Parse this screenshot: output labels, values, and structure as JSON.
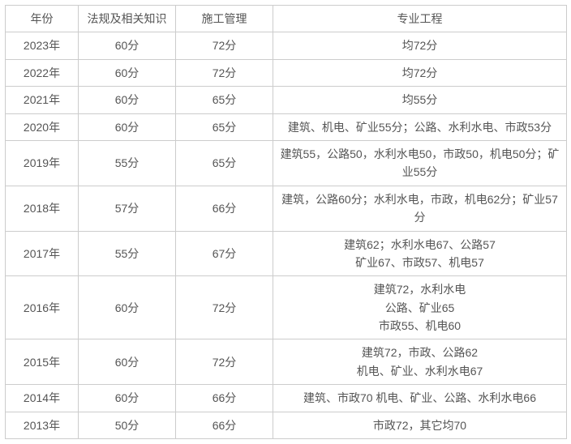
{
  "table": {
    "headers": {
      "year": "年份",
      "law": "法规及相关知识",
      "mgmt": "施工管理",
      "eng": "专业工程"
    },
    "rows": [
      {
        "year": "2023年",
        "law": "60分",
        "mgmt": "72分",
        "eng": "均72分"
      },
      {
        "year": "2022年",
        "law": "60分",
        "mgmt": "72分",
        "eng": "均72分"
      },
      {
        "year": "2021年",
        "law": "60分",
        "mgmt": "65分",
        "eng": "均55分"
      },
      {
        "year": "2020年",
        "law": "60分",
        "mgmt": "65分",
        "eng": "建筑、机电、矿业55分；公路、水利水电、市政53分"
      },
      {
        "year": "2019年",
        "law": "55分",
        "mgmt": "65分",
        "eng": "建筑55，公路50，水利水电50，市政50，机电50分；矿业55分"
      },
      {
        "year": "2018年",
        "law": "57分",
        "mgmt": "66分",
        "eng": "建筑，公路60分；水利水电，市政，机电62分；矿业57分"
      },
      {
        "year": "2017年",
        "law": "55分",
        "mgmt": "67分",
        "eng": "建筑62；水利水电67、公路57\n矿业67、市政57、机电57"
      },
      {
        "year": "2016年",
        "law": "60分",
        "mgmt": "72分",
        "eng": "建筑72，水利水电\n公路、矿业65\n市政55、机电60"
      },
      {
        "year": "2015年",
        "law": "60分",
        "mgmt": "72分",
        "eng": "建筑72，市政、公路62\n机电、矿业、水利水电67"
      },
      {
        "year": "2014年",
        "law": "60分",
        "mgmt": "66分",
        "eng": "建筑、市政70 机电、矿业、公路、水利水电66"
      },
      {
        "year": "2013年",
        "law": "50分",
        "mgmt": "66分",
        "eng": "市政72，其它均70"
      }
    ]
  },
  "colors": {
    "border": "#cccccc",
    "text": "#555555",
    "background": "#ffffff"
  },
  "font_size": 14
}
